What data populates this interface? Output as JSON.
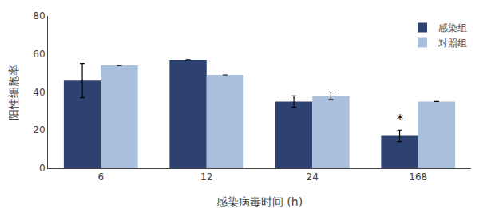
{
  "chart_data": {
    "type": "bar",
    "xlabel": "感染病毒时间 (h)",
    "ylabel": "阳性细胞率",
    "categories": [
      "6",
      "12",
      "24",
      "168"
    ],
    "series": [
      {
        "name": "感染组",
        "color": "#2E4272",
        "values": [
          46,
          57,
          35,
          17
        ],
        "errors": [
          9,
          0,
          3,
          3
        ]
      },
      {
        "name": "对照组",
        "color": "#A8BFDD",
        "values": [
          54,
          49,
          38,
          35
        ],
        "errors": [
          0,
          0,
          2,
          0
        ]
      }
    ],
    "annotations": [
      {
        "text": "*",
        "series": "感染组",
        "category": "168"
      }
    ],
    "ylim": [
      0,
      80
    ],
    "yticks": [
      0,
      20,
      40,
      60,
      80
    ],
    "grid": false,
    "legend": "upper right"
  }
}
